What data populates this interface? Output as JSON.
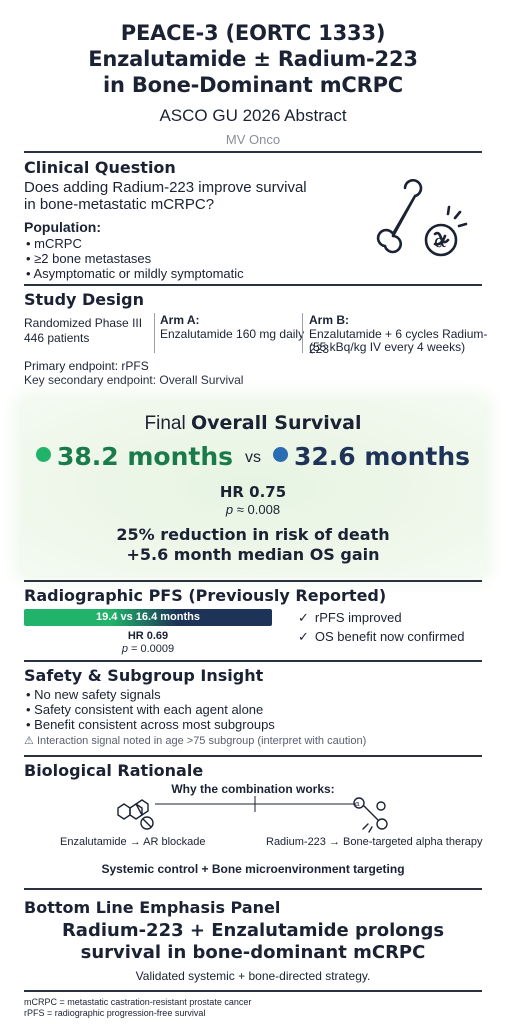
{
  "header": {
    "title_line1": "PEACE-3 (EORTC 1333)",
    "title_line2": "Enzalutamide ± Radium-223",
    "title_line3": "in Bone-Dominant mCRPC",
    "subtitle": "ASCO GU 2026 Abstract",
    "author": "MV Onco"
  },
  "clinical_question": {
    "heading": "Clinical Question",
    "question_line1": "Does adding Radium-223 improve survival",
    "question_line2": "in bone-metastatic mCRPC?",
    "population_label": "Population:",
    "population": [
      "mCRPC",
      "≥2 bone metastases",
      "Asymptomatic or mildly symptomatic"
    ],
    "icon": "bone-alpha-icon"
  },
  "study_design": {
    "heading": "Study Design",
    "design_line1": "Randomized Phase III",
    "design_line2": "446 patients",
    "arm_a_label": "Arm A:",
    "arm_a_text": "Enzalutamide 160 mg daily",
    "arm_b_label": "Arm B:",
    "arm_b_line1": "Enzalutamide + 6 cycles Radium-223",
    "arm_b_line2": "(55 kBq/kg IV every 4 weeks)",
    "primary_endpoint": "Primary endpoint: rPFS",
    "secondary_endpoint": "Key secondary endpoint: Overall Survival"
  },
  "overall_survival": {
    "heading_prefix": "Final",
    "heading_bold": "Overall Survival",
    "arm_b_value": "38.2 months",
    "vs": "vs",
    "arm_a_value": "32.6 months",
    "hr": "HR 0.75",
    "p_label": "p",
    "p_value": "≈ 0.008",
    "reduction_line1": "25% reduction in risk of death",
    "reduction_line2": "+5.6 month median OS gain",
    "colors": {
      "arm_b": "#22b36a",
      "arm_a": "#2a6db3"
    }
  },
  "rpfs": {
    "heading": "Radiographic PFS (Previously Reported)",
    "bar_text": "19.4 vs 16.4 months",
    "hr": "HR 0.69",
    "p_label": "p",
    "p_value": "= 0.0009",
    "checks": [
      "rPFS improved",
      "OS benefit now confirmed"
    ],
    "colors": {
      "green": "#22b36a",
      "navy": "#1d3357"
    }
  },
  "safety": {
    "heading": "Safety & Subgroup Insight",
    "bullets": [
      "No new safety signals",
      "Safety consistent with each agent alone",
      "Benefit consistent across most subgroups"
    ],
    "warning": "Interaction signal noted in age >75 subgroup (interpret with caution)",
    "warning_icon": "warning-triangle-icon"
  },
  "rationale": {
    "heading": "Biological Rationale",
    "subheading": "Why the combination works:",
    "left_label": "Enzalutamide → AR blockade",
    "right_label": "Radium-223 → Bone-targeted alpha therapy",
    "summary": "Systemic control + Bone microenvironment targeting",
    "left_icon": "molecule-ar-blockade-icon",
    "right_icon": "bone-alpha-therapy-icon"
  },
  "bottom_line": {
    "heading": "Bottom Line Emphasis Panel",
    "headline_line1": "Radium-223 + Enzalutamide prolongs",
    "headline_line2": "survival in bone-dominant mCRPC",
    "tagline": "Validated systemic + bone-directed strategy."
  },
  "footnotes": [
    "mCRPC = metastatic castration-resistant prostate cancer",
    "rPFS = radiographic progression-free survival"
  ]
}
